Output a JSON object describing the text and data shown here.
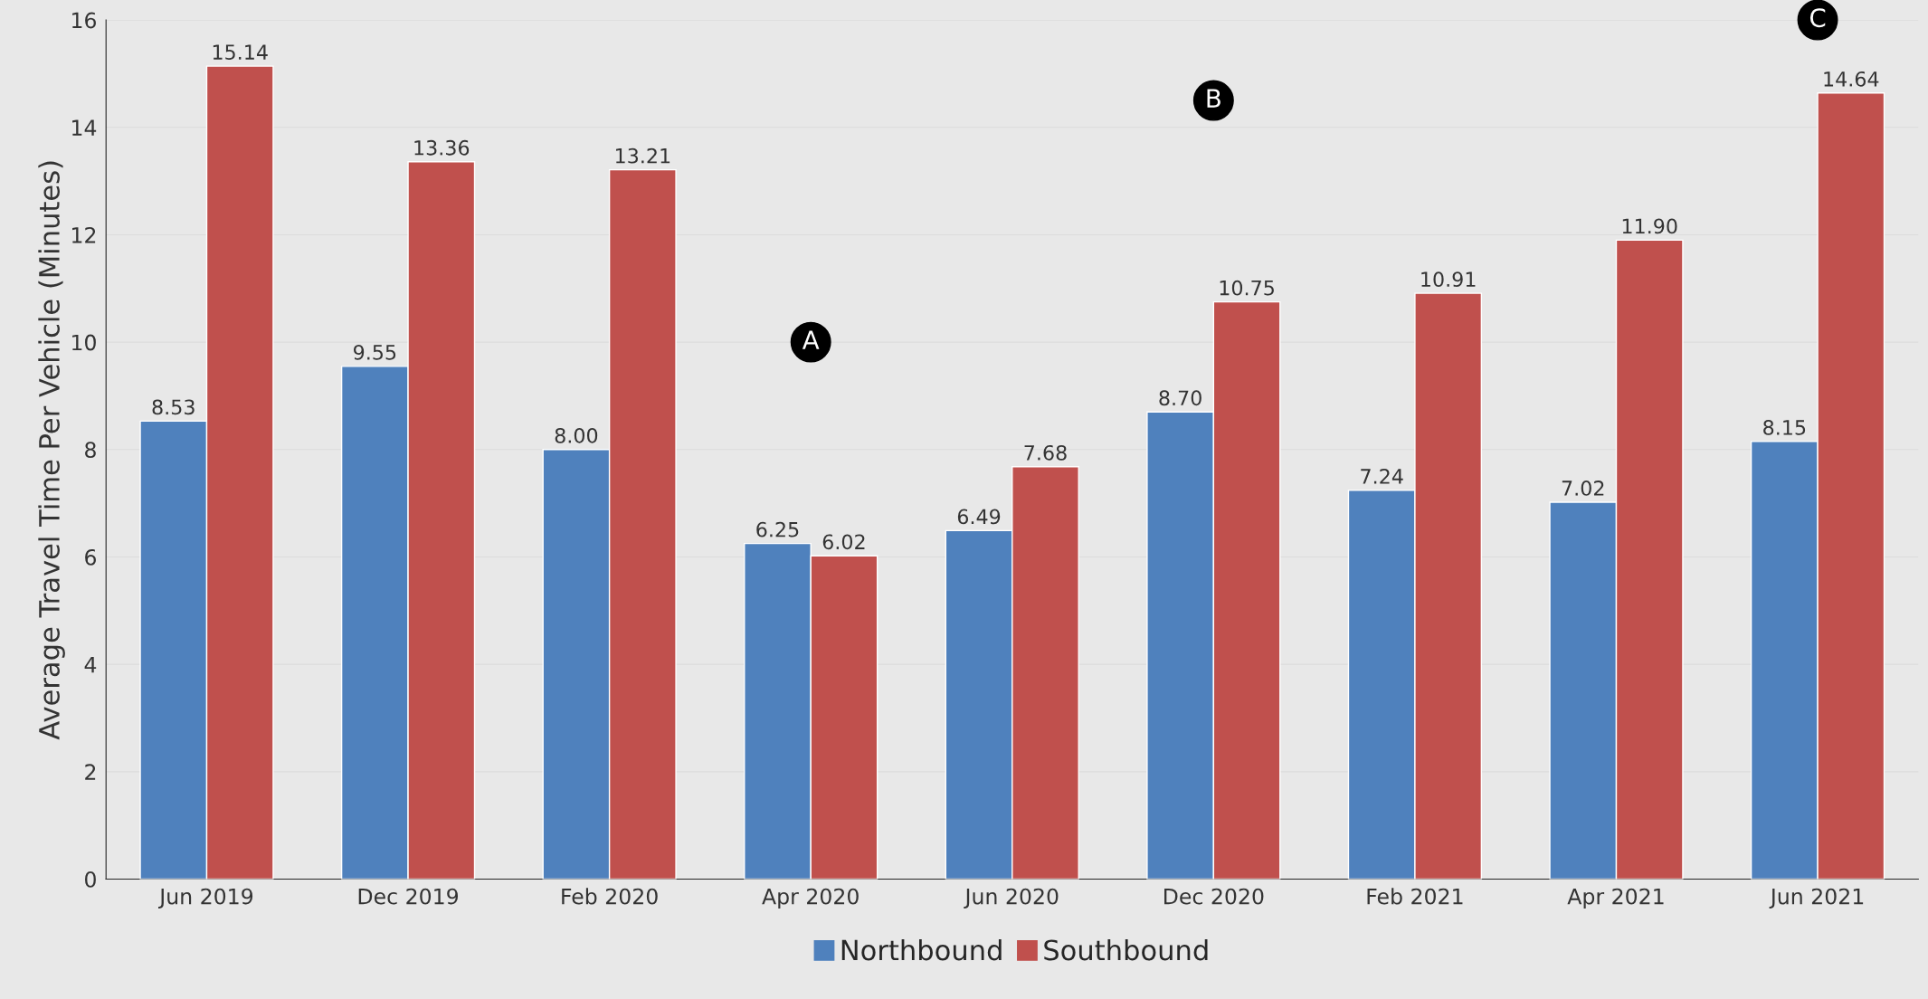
{
  "chart_data": {
    "type": "bar",
    "ylabel": "Average Travel Time Per Vehicle (Minutes)",
    "categories": [
      "Jun 2019",
      "Dec 2019",
      "Feb 2020",
      "Apr 2020",
      "Jun 2020",
      "Dec 2020",
      "Feb 2021",
      "Apr 2021",
      "Jun 2021"
    ],
    "series": [
      {
        "name": "Northbound",
        "color": "#4f81bd",
        "values": [
          8.53,
          9.55,
          8.0,
          6.25,
          6.49,
          8.7,
          7.24,
          7.02,
          8.15
        ]
      },
      {
        "name": "Southbound",
        "color": "#c0504d",
        "values": [
          15.14,
          13.36,
          13.21,
          6.02,
          7.68,
          10.75,
          10.91,
          11.9,
          14.64
        ]
      }
    ],
    "value_labels": [
      [
        "8.53",
        "9.55",
        "8.00",
        "6.25",
        "6.49",
        "8.70",
        "7.24",
        "7.02",
        "8.15"
      ],
      [
        "15.14",
        "13.36",
        "13.21",
        "6.02",
        "7.68",
        "10.75",
        "10.91",
        "11.90",
        "14.64"
      ]
    ],
    "annotations": [
      {
        "text": "A",
        "x": "Apr 2020",
        "y": 10
      },
      {
        "text": "B",
        "x": "Dec 2020",
        "y": 14.5
      },
      {
        "text": "C",
        "x": "Jun 2021",
        "y": 16
      }
    ],
    "ylim": [
      0,
      16
    ],
    "yticks": [
      0,
      2,
      4,
      6,
      8,
      10,
      12,
      14,
      16
    ],
    "grid": "y",
    "legend": "bottom"
  }
}
